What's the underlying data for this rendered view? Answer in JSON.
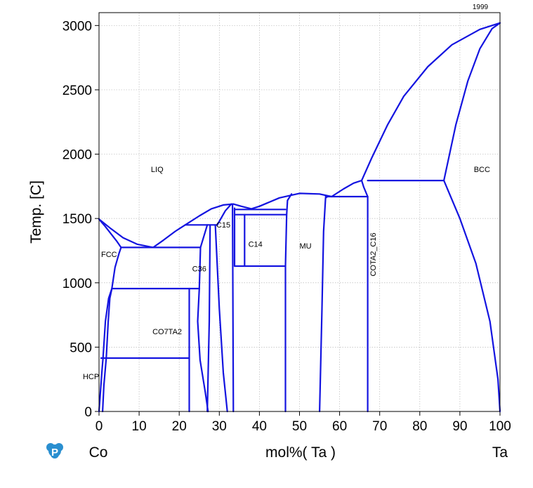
{
  "chart_data": {
    "type": "line",
    "title": "",
    "stamp": "1999",
    "ylabel": "Temp.  [C]",
    "xlabel": "mol%(  Ta  )",
    "left_element": "Co",
    "right_element": "Ta",
    "xlim": [
      0,
      100
    ],
    "ylim": [
      0,
      3100
    ],
    "xticks": [
      0,
      10,
      20,
      30,
      40,
      50,
      60,
      70,
      80,
      90,
      100
    ],
    "yticks": [
      0,
      500,
      1000,
      1500,
      2000,
      2500,
      3000
    ],
    "grid": true,
    "phase_labels": [
      {
        "text": "LIQ",
        "x": 14.5,
        "y": 1860
      },
      {
        "text": "BCC",
        "x": 95.5,
        "y": 1860
      },
      {
        "text": "FCC",
        "x": 2.5,
        "y": 1200
      },
      {
        "text": "HCP",
        "x": -2.0,
        "y": 250
      },
      {
        "text": "CO7TA2",
        "x": 17.0,
        "y": 600
      },
      {
        "text": "C36",
        "x": 25.0,
        "y": 1090
      },
      {
        "text": "C15",
        "x": 31.0,
        "y": 1430
      },
      {
        "text": "C14",
        "x": 39.0,
        "y": 1280
      },
      {
        "text": "MU",
        "x": 51.5,
        "y": 1265
      },
      {
        "text": "COTA2_C16",
        "x": 69.0,
        "y": 1220,
        "rotated": true
      }
    ],
    "boundaries": [
      {
        "name": "liquidus-co-side",
        "points": [
          [
            0,
            1495
          ],
          [
            3,
            1420
          ],
          [
            6,
            1350
          ],
          [
            9.5,
            1300
          ],
          [
            13.5,
            1275
          ]
        ]
      },
      {
        "name": "fcc-solidus",
        "points": [
          [
            0,
            1495
          ],
          [
            1.5,
            1440
          ],
          [
            3,
            1380
          ],
          [
            4.5,
            1320
          ],
          [
            5.5,
            1275
          ]
        ]
      },
      {
        "name": "liquidus-c36-side",
        "points": [
          [
            13.5,
            1275
          ],
          [
            16,
            1330
          ],
          [
            19,
            1400
          ],
          [
            21.5,
            1450
          ]
        ]
      },
      {
        "name": "liquidus-c15-dome",
        "points": [
          [
            21.5,
            1450
          ],
          [
            25,
            1520
          ],
          [
            28,
            1575
          ],
          [
            31,
            1605
          ],
          [
            33.5,
            1612
          ]
        ]
      },
      {
        "name": "liquidus-c14-dome",
        "points": [
          [
            33.5,
            1612
          ],
          [
            35.5,
            1595
          ],
          [
            38,
            1575
          ],
          [
            40,
            1595
          ]
        ]
      },
      {
        "name": "liquidus-mu-dome",
        "points": [
          [
            40,
            1595
          ],
          [
            45,
            1660
          ],
          [
            50,
            1695
          ],
          [
            55,
            1690
          ],
          [
            58,
            1670
          ]
        ]
      },
      {
        "name": "liquidus-c16-dome",
        "points": [
          [
            58,
            1670
          ],
          [
            61,
            1730
          ],
          [
            63.5,
            1775
          ],
          [
            65.5,
            1795
          ]
        ]
      },
      {
        "name": "liquidus-bcc-ta-side",
        "points": [
          [
            65.5,
            1795
          ],
          [
            68,
            1970
          ],
          [
            72,
            2230
          ],
          [
            76,
            2450
          ],
          [
            82,
            2680
          ],
          [
            88,
            2850
          ],
          [
            95,
            2970
          ],
          [
            100,
            3020
          ]
        ]
      },
      {
        "name": "bcc-solidus",
        "points": [
          [
            86,
            1795
          ],
          [
            89,
            2230
          ],
          [
            92,
            2570
          ],
          [
            95,
            2820
          ],
          [
            98,
            2975
          ],
          [
            100,
            3020
          ]
        ]
      },
      {
        "name": "bcc-solvus",
        "points": [
          [
            86,
            1795
          ],
          [
            90,
            1500
          ],
          [
            94,
            1150
          ],
          [
            97.5,
            700
          ],
          [
            99.5,
            250
          ],
          [
            100,
            0
          ]
        ]
      },
      {
        "name": "fcc-hcp-boundary",
        "points": [
          [
            0,
            0
          ],
          [
            0.7,
            300
          ],
          [
            1,
            415
          ],
          [
            1.6,
            700
          ],
          [
            2.4,
            880
          ],
          [
            3.2,
            955
          ]
        ]
      },
      {
        "name": "fcc-left-upper",
        "points": [
          [
            3.2,
            955
          ],
          [
            4,
            1120
          ],
          [
            5,
            1230
          ],
          [
            5.5,
            1275
          ]
        ]
      },
      {
        "name": "fcc-right",
        "points": [
          [
            3.2,
            955
          ],
          [
            2.7,
            880
          ],
          [
            2.3,
            700
          ],
          [
            1.8,
            415
          ],
          [
            1.2,
            200
          ],
          [
            0.9,
            0
          ]
        ]
      },
      {
        "name": "eutectic-1275",
        "points": [
          [
            5.5,
            1275
          ],
          [
            25.3,
            1275
          ]
        ]
      },
      {
        "name": "eutectoid-955",
        "points": [
          [
            3.2,
            955
          ],
          [
            25,
            955
          ]
        ]
      },
      {
        "name": "hcp-fcc-415",
        "points": [
          [
            0.5,
            415
          ],
          [
            22.5,
            415
          ]
        ]
      },
      {
        "name": "co7ta2-right",
        "points": [
          [
            22.5,
            0
          ],
          [
            22.5,
            955
          ]
        ]
      },
      {
        "name": "c36-left",
        "points": [
          [
            25,
            955
          ],
          [
            24.6,
            700
          ],
          [
            25.2,
            400
          ],
          [
            26.5,
            150
          ],
          [
            27.2,
            0
          ]
        ]
      },
      {
        "name": "c36-left-upper",
        "points": [
          [
            25,
            955
          ],
          [
            25.3,
            1275
          ],
          [
            27,
            1450
          ]
        ]
      },
      {
        "name": "c36-right",
        "points": [
          [
            27,
            0
          ],
          [
            27.5,
            700
          ],
          [
            27.7,
            1450
          ]
        ]
      },
      {
        "name": "peritectic-1450",
        "points": [
          [
            21.5,
            1450
          ],
          [
            29.5,
            1450
          ]
        ]
      },
      {
        "name": "c15-left",
        "points": [
          [
            29,
            1450
          ],
          [
            30,
            800
          ],
          [
            31,
            300
          ],
          [
            32,
            0
          ]
        ]
      },
      {
        "name": "c15-right",
        "points": [
          [
            33.5,
            0
          ],
          [
            33.4,
            800
          ],
          [
            33.3,
            1612
          ]
        ]
      },
      {
        "name": "c15-top-left",
        "points": [
          [
            29.5,
            1450
          ],
          [
            31.5,
            1560
          ],
          [
            33,
            1612
          ]
        ]
      },
      {
        "name": "c14-left",
        "points": [
          [
            33.8,
            1580
          ],
          [
            33.8,
            1130
          ]
        ]
      },
      {
        "name": "c14-eutectoid-1130",
        "points": [
          [
            33.8,
            1130
          ],
          [
            46.5,
            1130
          ]
        ]
      },
      {
        "name": "c14-inner",
        "points": [
          [
            36.3,
            1130
          ],
          [
            36.3,
            1530
          ]
        ]
      },
      {
        "name": "c14-line-1530",
        "points": [
          [
            33.8,
            1530
          ],
          [
            46.5,
            1530
          ]
        ]
      },
      {
        "name": "c14-line-1570",
        "points": [
          [
            33.8,
            1570
          ],
          [
            46.5,
            1570
          ]
        ]
      },
      {
        "name": "mu-left",
        "points": [
          [
            46.5,
            0
          ],
          [
            46.5,
            1130
          ],
          [
            46.8,
            1530
          ],
          [
            47,
            1640
          ],
          [
            48,
            1690
          ]
        ]
      },
      {
        "name": "mu-right",
        "points": [
          [
            55,
            0
          ],
          [
            55.6,
            800
          ],
          [
            56,
            1400
          ],
          [
            56.5,
            1660
          ],
          [
            57,
            1670
          ]
        ]
      },
      {
        "name": "line-1670",
        "points": [
          [
            56.5,
            1670
          ],
          [
            67,
            1670
          ]
        ]
      },
      {
        "name": "c16-left",
        "points": [
          [
            67,
            0
          ],
          [
            67,
            1670
          ]
        ]
      },
      {
        "name": "line-1795",
        "points": [
          [
            67,
            1795
          ],
          [
            86,
            1795
          ]
        ]
      },
      {
        "name": "c16-right",
        "points": [
          [
            67,
            1670
          ],
          [
            66,
            1745
          ],
          [
            65.5,
            1795
          ]
        ]
      }
    ]
  },
  "logo": {
    "letter": "P"
  }
}
